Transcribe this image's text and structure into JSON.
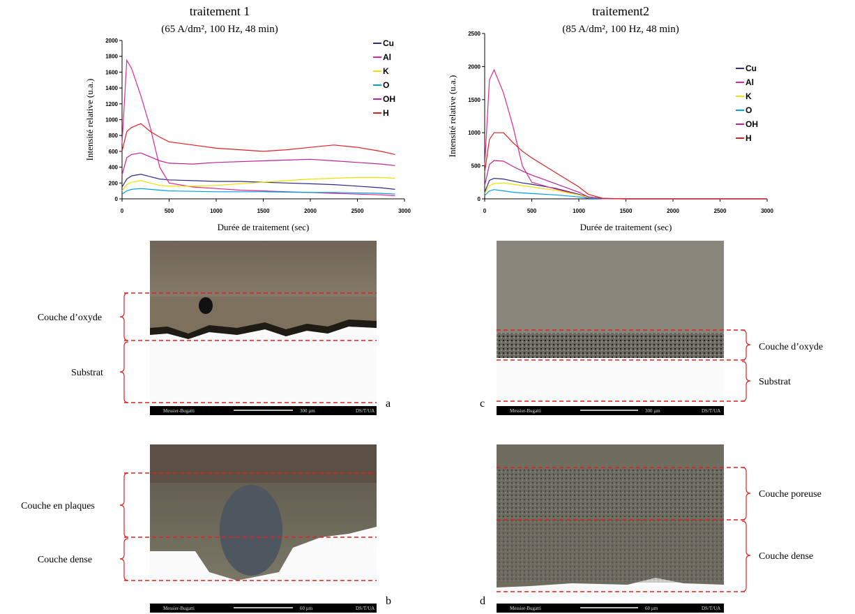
{
  "chart_data": [
    {
      "type": "line",
      "title": "traitement 1",
      "subtitle": "(65 A/dm², 100 Hz, 48 min)",
      "x_label": "Durée de traitement (sec)",
      "y_label": "Intensité relative (u.a.)",
      "x": [
        0,
        50,
        100,
        200,
        300,
        400,
        500,
        750,
        1000,
        1250,
        1500,
        1750,
        2000,
        2250,
        2500,
        2750,
        2900
      ],
      "xlim": [
        0,
        3000
      ],
      "xticks": [
        0,
        500,
        1000,
        1500,
        2000,
        2500,
        3000
      ],
      "ylim": [
        0,
        2000
      ],
      "yticks": [
        0,
        200,
        400,
        600,
        800,
        1000,
        1200,
        1400,
        1600,
        1800,
        2000
      ],
      "legend": "upper right",
      "series": [
        {
          "name": "Cu",
          "color": "#2b2b8c",
          "values": [
            150,
            250,
            290,
            310,
            280,
            250,
            240,
            230,
            220,
            220,
            210,
            200,
            190,
            180,
            160,
            140,
            120
          ]
        },
        {
          "name": "Al",
          "color": "#e6268c",
          "values": [
            700,
            1750,
            1650,
            1300,
            900,
            400,
            200,
            150,
            130,
            110,
            100,
            90,
            80,
            70,
            60,
            50,
            40
          ]
        },
        {
          "name": "K",
          "color": "#f0e000",
          "values": [
            100,
            180,
            210,
            230,
            200,
            170,
            160,
            160,
            170,
            190,
            210,
            230,
            250,
            260,
            270,
            270,
            260
          ]
        },
        {
          "name": "O",
          "color": "#00a0e0",
          "values": [
            60,
            100,
            120,
            130,
            120,
            110,
            100,
            95,
            90,
            90,
            90,
            85,
            80,
            80,
            75,
            70,
            60
          ]
        },
        {
          "name": "OH",
          "color": "#c0209a",
          "values": [
            300,
            520,
            560,
            580,
            530,
            480,
            450,
            440,
            460,
            470,
            480,
            490,
            500,
            480,
            460,
            440,
            420
          ]
        },
        {
          "name": "H",
          "color": "#e02020",
          "values": [
            600,
            850,
            900,
            950,
            850,
            780,
            720,
            680,
            640,
            620,
            600,
            620,
            650,
            680,
            650,
            600,
            560
          ]
        }
      ]
    },
    {
      "type": "line",
      "title": "traitement2",
      "subtitle": "(85 A/dm², 100 Hz, 48 min)",
      "x_label": "Durée de traitement (sec)",
      "y_label": "Intensité relative (u.a.)",
      "x": [
        0,
        50,
        100,
        200,
        300,
        400,
        500,
        750,
        1000,
        1100,
        1250,
        1500,
        2000,
        2500,
        3000
      ],
      "xlim": [
        0,
        3000
      ],
      "xticks": [
        0,
        500,
        1000,
        1500,
        2000,
        2500,
        3000
      ],
      "ylim": [
        0,
        2500
      ],
      "yticks": [
        0,
        500,
        1000,
        1500,
        2000,
        2500
      ],
      "legend": "upper right",
      "series": [
        {
          "name": "Cu",
          "color": "#2b2b8c",
          "values": [
            100,
            280,
            310,
            300,
            270,
            240,
            220,
            160,
            70,
            30,
            5,
            0,
            0,
            0,
            0
          ]
        },
        {
          "name": "Al",
          "color": "#e6268c",
          "values": [
            500,
            1800,
            1950,
            1600,
            1100,
            500,
            250,
            150,
            60,
            20,
            5,
            0,
            0,
            0,
            0
          ]
        },
        {
          "name": "K",
          "color": "#f0e000",
          "values": [
            80,
            200,
            230,
            240,
            220,
            200,
            180,
            130,
            60,
            25,
            5,
            0,
            0,
            0,
            0
          ]
        },
        {
          "name": "O",
          "color": "#00a0e0",
          "values": [
            50,
            120,
            140,
            120,
            100,
            90,
            80,
            60,
            30,
            10,
            3,
            0,
            0,
            0,
            0
          ]
        },
        {
          "name": "OH",
          "color": "#c0209a",
          "values": [
            200,
            520,
            580,
            570,
            490,
            420,
            360,
            230,
            100,
            30,
            5,
            0,
            0,
            0,
            0
          ]
        },
        {
          "name": "H",
          "color": "#e02020",
          "values": [
            400,
            900,
            1000,
            1000,
            850,
            720,
            620,
            400,
            180,
            70,
            10,
            0,
            0,
            0,
            0
          ]
        }
      ]
    }
  ],
  "panels": [
    {
      "letter": "a",
      "labels": [
        "Couche d’oxyde",
        "Substrat"
      ],
      "brand": "Messier-Bugatti",
      "scale": "300 µm",
      "code": "DS/T/UA"
    },
    {
      "letter": "c",
      "labels": [
        "Couche d’oxyde",
        "Substrat"
      ],
      "brand": "Messier-Bugatti",
      "scale": "300 µm",
      "code": "DS/T/UA"
    },
    {
      "letter": "b",
      "labels": [
        "Couche en plaques",
        "Couche dense"
      ],
      "brand": "Messier-Bugatti",
      "scale": "60 µm",
      "code": "DS/T/UA"
    },
    {
      "letter": "d",
      "labels": [
        "Couche poreuse",
        "Couche dense"
      ],
      "brand": "Messier-Bugatti",
      "scale": "60 µm",
      "code": "DS/T/UA"
    }
  ]
}
